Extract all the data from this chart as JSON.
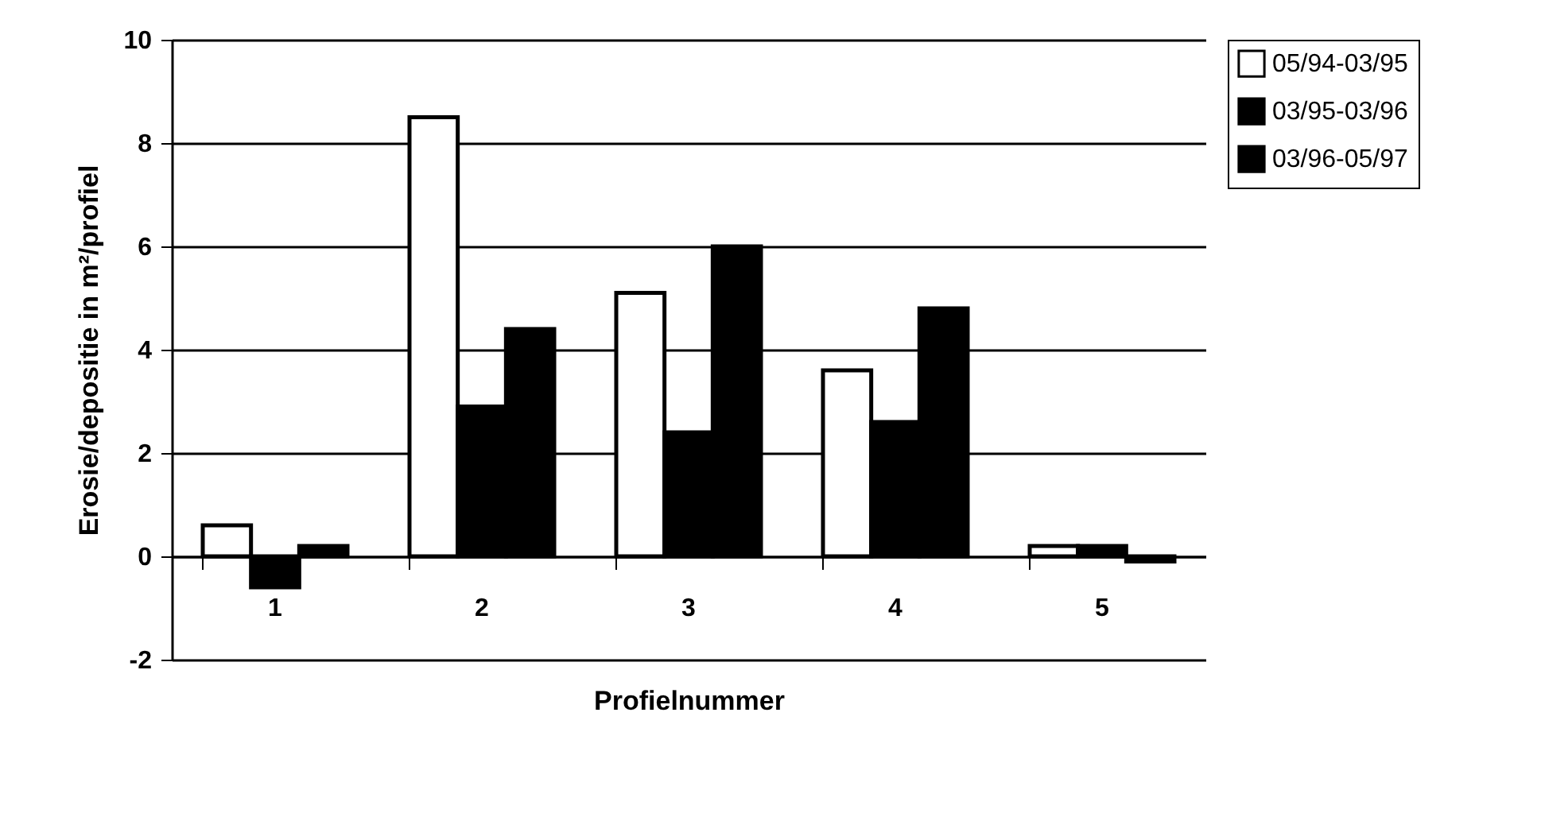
{
  "chart_data": {
    "type": "bar",
    "xlabel": "Profielnummer",
    "ylabel": "Erosie/depositie in m²/profiel",
    "categories": [
      "1",
      "2",
      "3",
      "4",
      "5"
    ],
    "series": [
      {
        "name": "05/94-03/95",
        "color": "#ffffff",
        "values": [
          0.6,
          8.5,
          5.1,
          3.6,
          0.2
        ]
      },
      {
        "name": "03/95-03/96",
        "color": "#000000",
        "values": [
          -0.6,
          2.9,
          2.4,
          2.6,
          0.2
        ]
      },
      {
        "name": "03/96-05/97",
        "color": "#000000",
        "values": [
          0.2,
          4.4,
          6.0,
          4.8,
          -0.1
        ]
      }
    ],
    "ylim": [
      -2,
      10
    ],
    "yticks": [
      -2,
      0,
      2,
      4,
      6,
      8,
      10
    ],
    "grid": "y",
    "legend": "right"
  }
}
